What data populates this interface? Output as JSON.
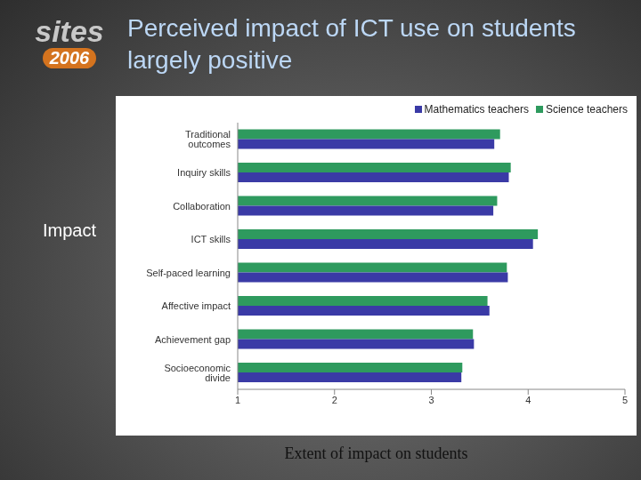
{
  "chart_data": {
    "type": "bar",
    "orientation": "horizontal",
    "title": "Perceived impact of ICT use on students largely positive",
    "annotations": [
      "sites",
      "2006"
    ],
    "x_label": "Extent of impact on students",
    "y_label": "Impact",
    "categories": [
      "Traditional outcomes",
      "Inquiry skills",
      "Collaboration",
      "ICT skills",
      "Self-paced learning",
      "Affective impact",
      "Achievement gap",
      "Socioeconomic divide"
    ],
    "series": [
      {
        "name": "Mathematics teachers",
        "color": "#3a3aa6",
        "values": [
          3.65,
          3.8,
          3.64,
          4.05,
          3.79,
          3.6,
          3.44,
          3.31
        ]
      },
      {
        "name": "Science teachers",
        "color": "#2e9a5e",
        "values": [
          3.71,
          3.82,
          3.68,
          4.1,
          3.78,
          3.58,
          3.43,
          3.32
        ]
      }
    ],
    "xlim": [
      1,
      5
    ],
    "xticks": [
      1,
      2,
      3,
      4,
      5
    ],
    "grid": false,
    "legend": "top-right"
  }
}
